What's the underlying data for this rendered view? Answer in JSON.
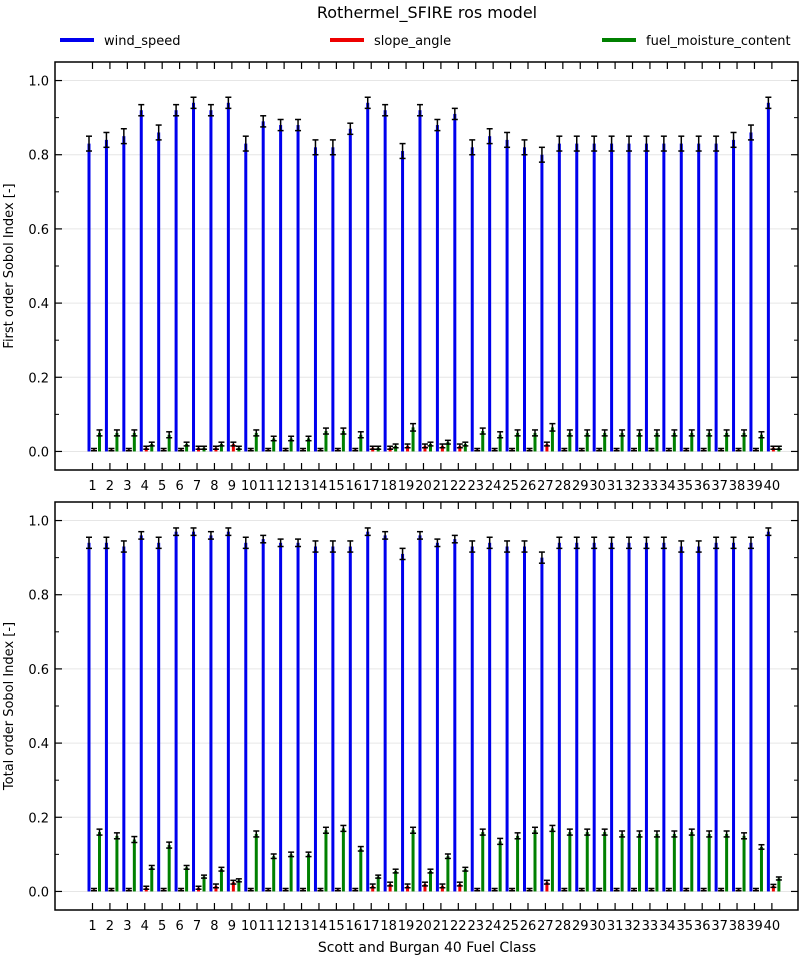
{
  "figure": {
    "title": "Rothermel_SFIRE ros model",
    "legend": [
      {
        "name": "wind_speed",
        "color": "#0000ee"
      },
      {
        "name": "slope_angle",
        "color": "#ee0000"
      },
      {
        "name": "fuel_moisture_content",
        "color": "#008000"
      }
    ],
    "xlabel": "Scott and Burgan 40 Fuel Class"
  },
  "chart_data": [
    {
      "type": "bar",
      "ylabel": "First order Sobol Index [-]",
      "ylim": [
        -0.05,
        1.05
      ],
      "yticks": [
        0.0,
        0.2,
        0.4,
        0.6,
        0.8,
        1.0
      ],
      "grid": true,
      "categories": [
        "1",
        "2",
        "3",
        "4",
        "5",
        "6",
        "7",
        "8",
        "9",
        "10",
        "11",
        "12",
        "13",
        "14",
        "15",
        "16",
        "17",
        "18",
        "19",
        "20",
        "21",
        "22",
        "23",
        "24",
        "25",
        "26",
        "27",
        "28",
        "29",
        "30",
        "31",
        "32",
        "33",
        "34",
        "35",
        "36",
        "37",
        "38",
        "39",
        "40"
      ],
      "series": [
        {
          "name": "wind_speed",
          "color": "#0000ee",
          "values": [
            0.83,
            0.84,
            0.85,
            0.92,
            0.86,
            0.92,
            0.94,
            0.92,
            0.94,
            0.83,
            0.89,
            0.88,
            0.88,
            0.82,
            0.82,
            0.87,
            0.94,
            0.92,
            0.81,
            0.92,
            0.88,
            0.91,
            0.82,
            0.85,
            0.84,
            0.82,
            0.8,
            0.83,
            0.83,
            0.83,
            0.83,
            0.83,
            0.83,
            0.83,
            0.83,
            0.83,
            0.83,
            0.84,
            0.86,
            0.94
          ],
          "errors": [
            0.02,
            0.02,
            0.02,
            0.015,
            0.02,
            0.015,
            0.015,
            0.015,
            0.015,
            0.02,
            0.015,
            0.015,
            0.015,
            0.02,
            0.02,
            0.015,
            0.015,
            0.015,
            0.02,
            0.015,
            0.015,
            0.015,
            0.02,
            0.02,
            0.02,
            0.02,
            0.02,
            0.02,
            0.02,
            0.02,
            0.02,
            0.02,
            0.02,
            0.02,
            0.02,
            0.02,
            0.02,
            0.02,
            0.02,
            0.015
          ]
        },
        {
          "name": "slope_angle",
          "color": "#ee0000",
          "values": [
            0.005,
            0.005,
            0.005,
            0.01,
            0.005,
            0.005,
            0.01,
            0.01,
            0.02,
            0.005,
            0.005,
            0.005,
            0.005,
            0.005,
            0.005,
            0.005,
            0.01,
            0.01,
            0.015,
            0.015,
            0.015,
            0.015,
            0.005,
            0.005,
            0.005,
            0.005,
            0.02,
            0.005,
            0.005,
            0.005,
            0.005,
            0.005,
            0.005,
            0.005,
            0.005,
            0.005,
            0.005,
            0.005,
            0.005,
            0.01
          ],
          "errors": [
            0.003,
            0.003,
            0.003,
            0.004,
            0.003,
            0.003,
            0.004,
            0.004,
            0.005,
            0.003,
            0.003,
            0.003,
            0.003,
            0.003,
            0.003,
            0.003,
            0.004,
            0.004,
            0.005,
            0.005,
            0.005,
            0.005,
            0.003,
            0.003,
            0.003,
            0.003,
            0.005,
            0.003,
            0.003,
            0.003,
            0.003,
            0.003,
            0.003,
            0.003,
            0.003,
            0.003,
            0.003,
            0.003,
            0.003,
            0.004
          ]
        },
        {
          "name": "fuel_moisture_content",
          "color": "#008000",
          "values": [
            0.05,
            0.05,
            0.05,
            0.02,
            0.045,
            0.02,
            0.01,
            0.02,
            0.01,
            0.05,
            0.035,
            0.035,
            0.035,
            0.055,
            0.055,
            0.045,
            0.01,
            0.015,
            0.065,
            0.02,
            0.025,
            0.02,
            0.055,
            0.045,
            0.05,
            0.05,
            0.065,
            0.05,
            0.05,
            0.05,
            0.05,
            0.05,
            0.05,
            0.05,
            0.05,
            0.05,
            0.05,
            0.05,
            0.045,
            0.01
          ],
          "errors": [
            0.008,
            0.008,
            0.008,
            0.005,
            0.008,
            0.005,
            0.004,
            0.005,
            0.004,
            0.008,
            0.006,
            0.006,
            0.006,
            0.008,
            0.008,
            0.008,
            0.004,
            0.005,
            0.01,
            0.005,
            0.005,
            0.005,
            0.008,
            0.008,
            0.008,
            0.008,
            0.01,
            0.008,
            0.008,
            0.008,
            0.008,
            0.008,
            0.008,
            0.008,
            0.008,
            0.008,
            0.008,
            0.008,
            0.008,
            0.004
          ]
        }
      ]
    },
    {
      "type": "bar",
      "ylabel": "Total order Sobol Index [-]",
      "ylim": [
        -0.05,
        1.05
      ],
      "yticks": [
        0.0,
        0.2,
        0.4,
        0.6,
        0.8,
        1.0
      ],
      "grid": true,
      "categories": [
        "1",
        "2",
        "3",
        "4",
        "5",
        "6",
        "7",
        "8",
        "9",
        "10",
        "11",
        "12",
        "13",
        "14",
        "15",
        "16",
        "17",
        "18",
        "19",
        "20",
        "21",
        "22",
        "23",
        "24",
        "25",
        "26",
        "27",
        "28",
        "29",
        "30",
        "31",
        "32",
        "33",
        "34",
        "35",
        "36",
        "37",
        "38",
        "39",
        "40"
      ],
      "series": [
        {
          "name": "wind_speed",
          "color": "#0000ee",
          "values": [
            0.94,
            0.94,
            0.93,
            0.96,
            0.94,
            0.97,
            0.97,
            0.96,
            0.97,
            0.94,
            0.95,
            0.94,
            0.94,
            0.93,
            0.93,
            0.93,
            0.97,
            0.96,
            0.91,
            0.96,
            0.94,
            0.95,
            0.93,
            0.94,
            0.93,
            0.93,
            0.9,
            0.94,
            0.94,
            0.94,
            0.94,
            0.94,
            0.94,
            0.94,
            0.93,
            0.93,
            0.94,
            0.94,
            0.94,
            0.97
          ],
          "errors": [
            0.015,
            0.015,
            0.015,
            0.01,
            0.015,
            0.01,
            0.01,
            0.01,
            0.01,
            0.015,
            0.01,
            0.01,
            0.01,
            0.015,
            0.015,
            0.015,
            0.01,
            0.01,
            0.015,
            0.01,
            0.01,
            0.01,
            0.015,
            0.015,
            0.015,
            0.015,
            0.015,
            0.015,
            0.015,
            0.015,
            0.015,
            0.015,
            0.015,
            0.015,
            0.015,
            0.015,
            0.015,
            0.015,
            0.015,
            0.01
          ]
        },
        {
          "name": "slope_angle",
          "color": "#ee0000",
          "values": [
            0.005,
            0.005,
            0.005,
            0.01,
            0.005,
            0.005,
            0.01,
            0.015,
            0.025,
            0.005,
            0.005,
            0.005,
            0.005,
            0.005,
            0.005,
            0.005,
            0.015,
            0.02,
            0.015,
            0.02,
            0.015,
            0.02,
            0.005,
            0.005,
            0.005,
            0.005,
            0.025,
            0.005,
            0.005,
            0.005,
            0.005,
            0.005,
            0.005,
            0.005,
            0.005,
            0.005,
            0.005,
            0.005,
            0.005,
            0.015
          ],
          "errors": [
            0.003,
            0.003,
            0.003,
            0.004,
            0.003,
            0.003,
            0.004,
            0.005,
            0.005,
            0.003,
            0.003,
            0.003,
            0.003,
            0.003,
            0.003,
            0.003,
            0.005,
            0.005,
            0.005,
            0.005,
            0.005,
            0.005,
            0.003,
            0.003,
            0.003,
            0.003,
            0.005,
            0.003,
            0.003,
            0.003,
            0.003,
            0.003,
            0.003,
            0.003,
            0.003,
            0.003,
            0.003,
            0.003,
            0.003,
            0.004
          ]
        },
        {
          "name": "fuel_moisture_content",
          "color": "#008000",
          "values": [
            0.16,
            0.15,
            0.14,
            0.065,
            0.125,
            0.065,
            0.04,
            0.06,
            0.03,
            0.155,
            0.095,
            0.1,
            0.1,
            0.165,
            0.17,
            0.115,
            0.04,
            0.055,
            0.165,
            0.055,
            0.095,
            0.06,
            0.16,
            0.135,
            0.15,
            0.165,
            0.17,
            0.16,
            0.16,
            0.16,
            0.155,
            0.155,
            0.155,
            0.155,
            0.16,
            0.155,
            0.155,
            0.15,
            0.12,
            0.035
          ],
          "errors": [
            0.008,
            0.008,
            0.008,
            0.005,
            0.008,
            0.005,
            0.004,
            0.005,
            0.004,
            0.008,
            0.006,
            0.006,
            0.006,
            0.008,
            0.008,
            0.006,
            0.004,
            0.005,
            0.008,
            0.005,
            0.006,
            0.005,
            0.008,
            0.008,
            0.008,
            0.008,
            0.008,
            0.008,
            0.008,
            0.008,
            0.008,
            0.008,
            0.008,
            0.008,
            0.008,
            0.008,
            0.008,
            0.008,
            0.006,
            0.004
          ]
        }
      ]
    }
  ]
}
